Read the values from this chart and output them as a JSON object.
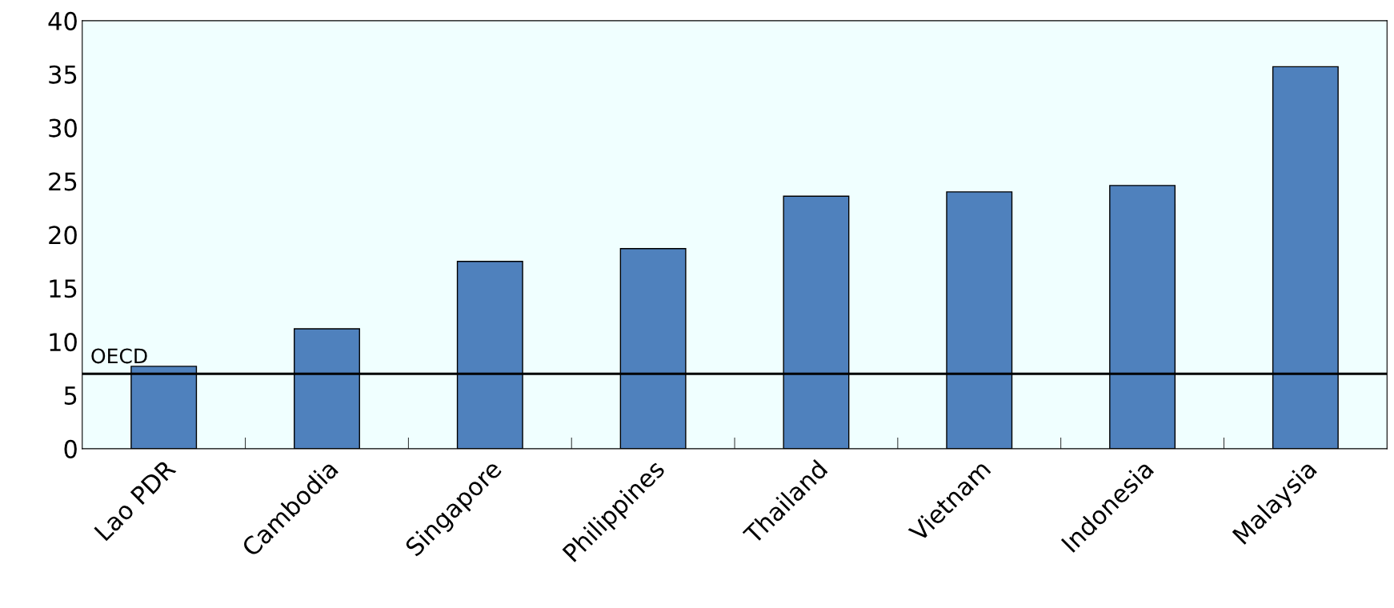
{
  "chart_data": {
    "type": "bar",
    "categories": [
      "Lao PDR",
      "Cambodia",
      "Singapore",
      "Philippines",
      "Thailand",
      "Vietnam",
      "Indonesia",
      "Malaysia"
    ],
    "values": [
      7.7,
      11.2,
      17.5,
      18.7,
      23.6,
      24.0,
      24.6,
      35.7
    ],
    "color": "#4f81bd",
    "ylim": [
      0,
      40
    ],
    "yticks": [
      0,
      5,
      10,
      15,
      20,
      25,
      30,
      35,
      40
    ],
    "grid": false,
    "ref_lines": [
      {
        "axis": "y",
        "value": 7.0,
        "label": "OECD",
        "color": "#000000",
        "line_style": "solid"
      }
    ]
  }
}
